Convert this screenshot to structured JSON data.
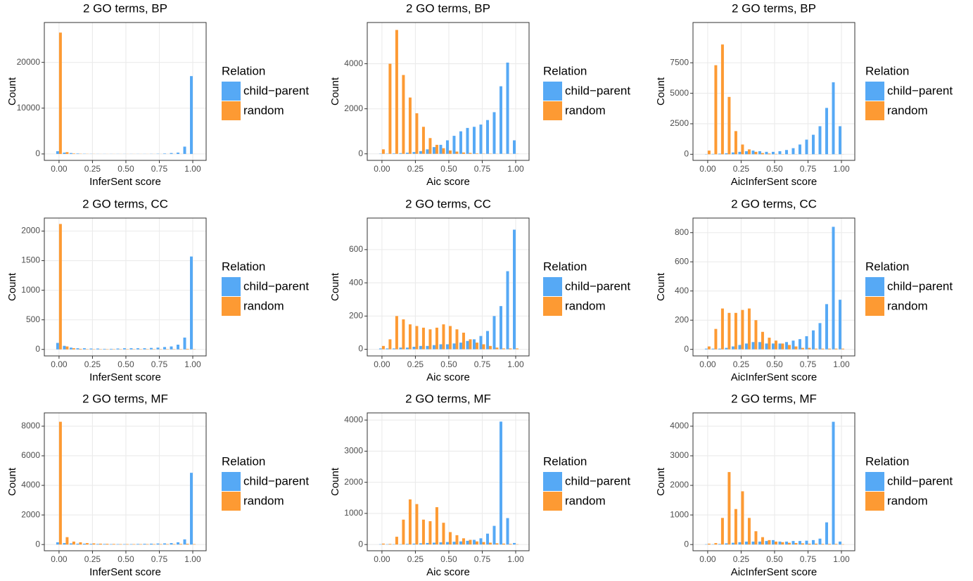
{
  "chart_data": [
    {
      "type": "bar",
      "title": "2 GO terms, BP",
      "x_label": "InferSent score",
      "y_label": "Count",
      "legend_title": "Relation",
      "grid": true,
      "x": [
        0,
        0.05,
        0.1,
        0.15,
        0.2,
        0.25,
        0.3,
        0.35,
        0.4,
        0.45,
        0.5,
        0.55,
        0.6,
        0.65,
        0.7,
        0.75,
        0.8,
        0.85,
        0.9,
        0.95,
        1
      ],
      "series": [
        {
          "name": "child−parent",
          "color": "#56a9f5",
          "values": [
            600,
            300,
            200,
            100,
            50,
            30,
            20,
            20,
            20,
            20,
            20,
            20,
            20,
            20,
            30,
            50,
            100,
            200,
            300,
            1600,
            17000
          ]
        },
        {
          "name": "random",
          "color": "#fd9a33",
          "values": [
            26500,
            400,
            100,
            50,
            30,
            20,
            10,
            10,
            10,
            10,
            10,
            10,
            10,
            10,
            10,
            10,
            10,
            10,
            10,
            10,
            10
          ]
        }
      ],
      "xlim": [
        -0.11,
        1.1
      ],
      "ylim": [
        -1400,
        28700
      ],
      "xticks": [
        {
          "value": 0,
          "label": "0.00"
        },
        {
          "value": 0.25,
          "label": "0.25"
        },
        {
          "value": 0.5,
          "label": "0.50"
        },
        {
          "value": 0.75,
          "label": "0.75"
        },
        {
          "value": 1,
          "label": "1.00"
        }
      ],
      "yticks": [
        0,
        10000,
        20000
      ]
    },
    {
      "type": "bar",
      "title": "2 GO terms, BP",
      "x_label": "Aic score",
      "y_label": "Count",
      "legend_title": "Relation",
      "grid": true,
      "x": [
        0,
        0.05,
        0.1,
        0.15,
        0.2,
        0.25,
        0.3,
        0.35,
        0.4,
        0.45,
        0.5,
        0.55,
        0.6,
        0.65,
        0.7,
        0.75,
        0.8,
        0.85,
        0.9,
        0.95,
        1
      ],
      "series": [
        {
          "name": "child−parent",
          "color": "#56a9f5",
          "values": [
            10,
            10,
            20,
            30,
            50,
            80,
            120,
            200,
            300,
            400,
            600,
            800,
            1000,
            1150,
            1200,
            1300,
            1500,
            1850,
            3000,
            4050,
            600
          ]
        },
        {
          "name": "random",
          "color": "#fd9a33",
          "values": [
            200,
            4000,
            5500,
            3500,
            2500,
            1800,
            1200,
            700,
            400,
            250,
            150,
            100,
            60,
            40,
            20,
            10,
            10,
            5,
            5,
            5,
            5
          ]
        }
      ],
      "xlim": [
        -0.11,
        1.1
      ],
      "ylim": [
        -290,
        5830
      ],
      "xticks": [
        {
          "value": 0,
          "label": "0.00"
        },
        {
          "value": 0.25,
          "label": "0.25"
        },
        {
          "value": 0.5,
          "label": "0.50"
        },
        {
          "value": 0.75,
          "label": "0.75"
        },
        {
          "value": 1,
          "label": "1.00"
        }
      ],
      "yticks": [
        0,
        2000,
        4000
      ]
    },
    {
      "type": "bar",
      "title": "2 GO terms, BP",
      "x_label": "AicInferSent score",
      "y_label": "Count",
      "legend_title": "Relation",
      "grid": true,
      "x": [
        0,
        0.05,
        0.1,
        0.15,
        0.2,
        0.25,
        0.3,
        0.35,
        0.4,
        0.45,
        0.5,
        0.55,
        0.6,
        0.65,
        0.7,
        0.75,
        0.8,
        0.85,
        0.9,
        0.95,
        1
      ],
      "series": [
        {
          "name": "child−parent",
          "color": "#56a9f5",
          "values": [
            20,
            30,
            50,
            80,
            150,
            200,
            250,
            300,
            250,
            200,
            200,
            250,
            350,
            500,
            800,
            1200,
            1600,
            2300,
            3800,
            5900,
            2300
          ]
        },
        {
          "name": "random",
          "color": "#fd9a33",
          "values": [
            300,
            7300,
            9000,
            4700,
            1900,
            800,
            400,
            200,
            100,
            60,
            30,
            20,
            10,
            10,
            5,
            5,
            5,
            5,
            5,
            5,
            5
          ]
        }
      ],
      "xlim": [
        -0.11,
        1.1
      ],
      "ylim": [
        -500,
        10800
      ],
      "xticks": [
        {
          "value": 0,
          "label": "0.00"
        },
        {
          "value": 0.25,
          "label": "0.25"
        },
        {
          "value": 0.5,
          "label": "0.50"
        },
        {
          "value": 0.75,
          "label": "0.75"
        },
        {
          "value": 1,
          "label": "1.00"
        }
      ],
      "yticks": [
        0,
        2500,
        5000,
        7500
      ]
    },
    {
      "type": "bar",
      "title": "2 GO terms, CC",
      "x_label": "InferSent score",
      "y_label": "Count",
      "legend_title": "Relation",
      "grid": true,
      "x": [
        0,
        0.05,
        0.1,
        0.15,
        0.2,
        0.25,
        0.3,
        0.35,
        0.4,
        0.45,
        0.5,
        0.55,
        0.6,
        0.65,
        0.7,
        0.75,
        0.8,
        0.85,
        0.9,
        0.95,
        1
      ],
      "series": [
        {
          "name": "child−parent",
          "color": "#56a9f5",
          "values": [
            110,
            60,
            30,
            20,
            20,
            15,
            15,
            10,
            10,
            15,
            20,
            20,
            20,
            20,
            25,
            30,
            40,
            50,
            80,
            200,
            1570
          ]
        },
        {
          "name": "random",
          "color": "#fd9a33",
          "values": [
            2120,
            50,
            20,
            10,
            5,
            5,
            5,
            5,
            5,
            5,
            5,
            5,
            5,
            5,
            5,
            5,
            5,
            5,
            5,
            10,
            5
          ]
        }
      ],
      "xlim": [
        -0.11,
        1.1
      ],
      "ylim": [
        -110,
        2220
      ],
      "xticks": [
        {
          "value": 0,
          "label": "0.00"
        },
        {
          "value": 0.25,
          "label": "0.25"
        },
        {
          "value": 0.5,
          "label": "0.50"
        },
        {
          "value": 0.75,
          "label": "0.75"
        },
        {
          "value": 1,
          "label": "1.00"
        }
      ],
      "yticks": [
        0,
        500,
        1000,
        1500,
        2000
      ]
    },
    {
      "type": "bar",
      "title": "2 GO terms, CC",
      "x_label": "Aic score",
      "y_label": "Count",
      "legend_title": "Relation",
      "grid": true,
      "x": [
        0,
        0.05,
        0.1,
        0.15,
        0.2,
        0.25,
        0.3,
        0.35,
        0.4,
        0.45,
        0.5,
        0.55,
        0.6,
        0.65,
        0.7,
        0.75,
        0.8,
        0.85,
        0.9,
        0.95,
        1
      ],
      "series": [
        {
          "name": "child−parent",
          "color": "#56a9f5",
          "values": [
            5,
            5,
            5,
            10,
            10,
            15,
            20,
            20,
            25,
            30,
            30,
            35,
            40,
            50,
            60,
            80,
            110,
            200,
            260,
            470,
            720
          ]
        },
        {
          "name": "random",
          "color": "#fd9a33",
          "values": [
            20,
            60,
            200,
            180,
            150,
            140,
            130,
            120,
            130,
            150,
            140,
            120,
            100,
            60,
            40,
            30,
            20,
            10,
            5,
            5,
            5
          ]
        }
      ],
      "xlim": [
        -0.11,
        1.1
      ],
      "ylim": [
        -40,
        790
      ],
      "xticks": [
        {
          "value": 0,
          "label": "0.00"
        },
        {
          "value": 0.25,
          "label": "0.25"
        },
        {
          "value": 0.5,
          "label": "0.50"
        },
        {
          "value": 0.75,
          "label": "0.75"
        },
        {
          "value": 1,
          "label": "1.00"
        }
      ],
      "yticks": [
        0,
        200,
        400,
        600
      ]
    },
    {
      "type": "bar",
      "title": "2 GO terms, CC",
      "x_label": "AicInferSent score",
      "y_label": "Count",
      "legend_title": "Relation",
      "grid": true,
      "x": [
        0,
        0.05,
        0.1,
        0.15,
        0.2,
        0.25,
        0.3,
        0.35,
        0.4,
        0.45,
        0.5,
        0.55,
        0.6,
        0.65,
        0.7,
        0.75,
        0.8,
        0.85,
        0.9,
        0.95,
        1
      ],
      "series": [
        {
          "name": "child−parent",
          "color": "#56a9f5",
          "values": [
            5,
            5,
            5,
            10,
            20,
            30,
            40,
            50,
            50,
            40,
            40,
            40,
            50,
            60,
            70,
            90,
            130,
            180,
            310,
            840,
            340
          ]
        },
        {
          "name": "random",
          "color": "#fd9a33",
          "values": [
            20,
            140,
            280,
            250,
            250,
            270,
            280,
            200,
            120,
            80,
            60,
            40,
            30,
            20,
            10,
            10,
            5,
            5,
            5,
            5,
            5
          ]
        }
      ],
      "xlim": [
        -0.11,
        1.1
      ],
      "ylim": [
        -45,
        900
      ],
      "xticks": [
        {
          "value": 0,
          "label": "0.00"
        },
        {
          "value": 0.25,
          "label": "0.25"
        },
        {
          "value": 0.5,
          "label": "0.50"
        },
        {
          "value": 0.75,
          "label": "0.75"
        },
        {
          "value": 1,
          "label": "1.00"
        }
      ],
      "yticks": [
        0,
        200,
        400,
        600,
        800
      ]
    },
    {
      "type": "bar",
      "title": "2 GO terms, MF",
      "x_label": "InferSent score",
      "y_label": "Count",
      "legend_title": "Relation",
      "grid": true,
      "x": [
        0,
        0.05,
        0.1,
        0.15,
        0.2,
        0.25,
        0.3,
        0.35,
        0.4,
        0.45,
        0.5,
        0.55,
        0.6,
        0.65,
        0.7,
        0.75,
        0.8,
        0.85,
        0.9,
        0.95,
        1
      ],
      "series": [
        {
          "name": "child−parent",
          "color": "#56a9f5",
          "values": [
            150,
            100,
            80,
            60,
            60,
            50,
            40,
            40,
            30,
            30,
            30,
            30,
            40,
            50,
            60,
            70,
            80,
            100,
            150,
            350,
            4850
          ]
        },
        {
          "name": "random",
          "color": "#fd9a33",
          "values": [
            8300,
            500,
            200,
            150,
            100,
            80,
            60,
            50,
            40,
            30,
            30,
            30,
            30,
            30,
            30,
            30,
            30,
            30,
            40,
            50,
            30
          ]
        }
      ],
      "xlim": [
        -0.11,
        1.1
      ],
      "ylim": [
        -420,
        8900
      ],
      "xticks": [
        {
          "value": 0,
          "label": "0.00"
        },
        {
          "value": 0.25,
          "label": "0.25"
        },
        {
          "value": 0.5,
          "label": "0.50"
        },
        {
          "value": 0.75,
          "label": "0.75"
        },
        {
          "value": 1,
          "label": "1.00"
        }
      ],
      "yticks": [
        0,
        2000,
        4000,
        6000,
        8000
      ]
    },
    {
      "type": "bar",
      "title": "2 GO terms, MF",
      "x_label": "Aic score",
      "y_label": "Count",
      "legend_title": "Relation",
      "grid": true,
      "x": [
        0,
        0.05,
        0.1,
        0.15,
        0.2,
        0.25,
        0.3,
        0.35,
        0.4,
        0.45,
        0.5,
        0.55,
        0.6,
        0.65,
        0.7,
        0.75,
        0.8,
        0.85,
        0.9,
        0.95,
        1
      ],
      "series": [
        {
          "name": "child−parent",
          "color": "#56a9f5",
          "values": [
            10,
            10,
            10,
            10,
            20,
            30,
            40,
            50,
            60,
            70,
            80,
            90,
            100,
            120,
            150,
            200,
            350,
            600,
            3950,
            850,
            50
          ]
        },
        {
          "name": "random",
          "color": "#fd9a33",
          "values": [
            30,
            20,
            250,
            800,
            1450,
            1300,
            800,
            750,
            1200,
            700,
            400,
            300,
            200,
            150,
            100,
            80,
            60,
            40,
            30,
            20,
            10
          ]
        }
      ],
      "xlim": [
        -0.11,
        1.1
      ],
      "ylim": [
        -200,
        4230
      ],
      "xticks": [
        {
          "value": 0,
          "label": "0.00"
        },
        {
          "value": 0.25,
          "label": "0.25"
        },
        {
          "value": 0.5,
          "label": "0.50"
        },
        {
          "value": 0.75,
          "label": "0.75"
        },
        {
          "value": 1,
          "label": "1.00"
        }
      ],
      "yticks": [
        0,
        1000,
        2000,
        3000,
        4000
      ]
    },
    {
      "type": "bar",
      "title": "2 GO terms, MF",
      "x_label": "AicInferSent score",
      "y_label": "Count",
      "legend_title": "Relation",
      "grid": true,
      "x": [
        0,
        0.05,
        0.1,
        0.15,
        0.2,
        0.25,
        0.3,
        0.35,
        0.4,
        0.45,
        0.5,
        0.55,
        0.6,
        0.65,
        0.7,
        0.75,
        0.8,
        0.85,
        0.9,
        0.95,
        1
      ],
      "series": [
        {
          "name": "child−parent",
          "color": "#56a9f5",
          "values": [
            10,
            10,
            20,
            40,
            60,
            80,
            100,
            100,
            100,
            120,
            150,
            100,
            100,
            120,
            120,
            130,
            150,
            200,
            750,
            4150,
            100
          ]
        },
        {
          "name": "random",
          "color": "#fd9a33",
          "values": [
            30,
            50,
            900,
            2450,
            1200,
            1800,
            900,
            450,
            250,
            150,
            100,
            80,
            60,
            50,
            40,
            30,
            30,
            20,
            20,
            20,
            10
          ]
        }
      ],
      "xlim": [
        -0.11,
        1.1
      ],
      "ylim": [
        -210,
        4450
      ],
      "xticks": [
        {
          "value": 0,
          "label": "0.00"
        },
        {
          "value": 0.25,
          "label": "0.25"
        },
        {
          "value": 0.5,
          "label": "0.50"
        },
        {
          "value": 0.75,
          "label": "0.75"
        },
        {
          "value": 1,
          "label": "1.00"
        }
      ],
      "yticks": [
        0,
        1000,
        2000,
        3000,
        4000
      ]
    }
  ]
}
